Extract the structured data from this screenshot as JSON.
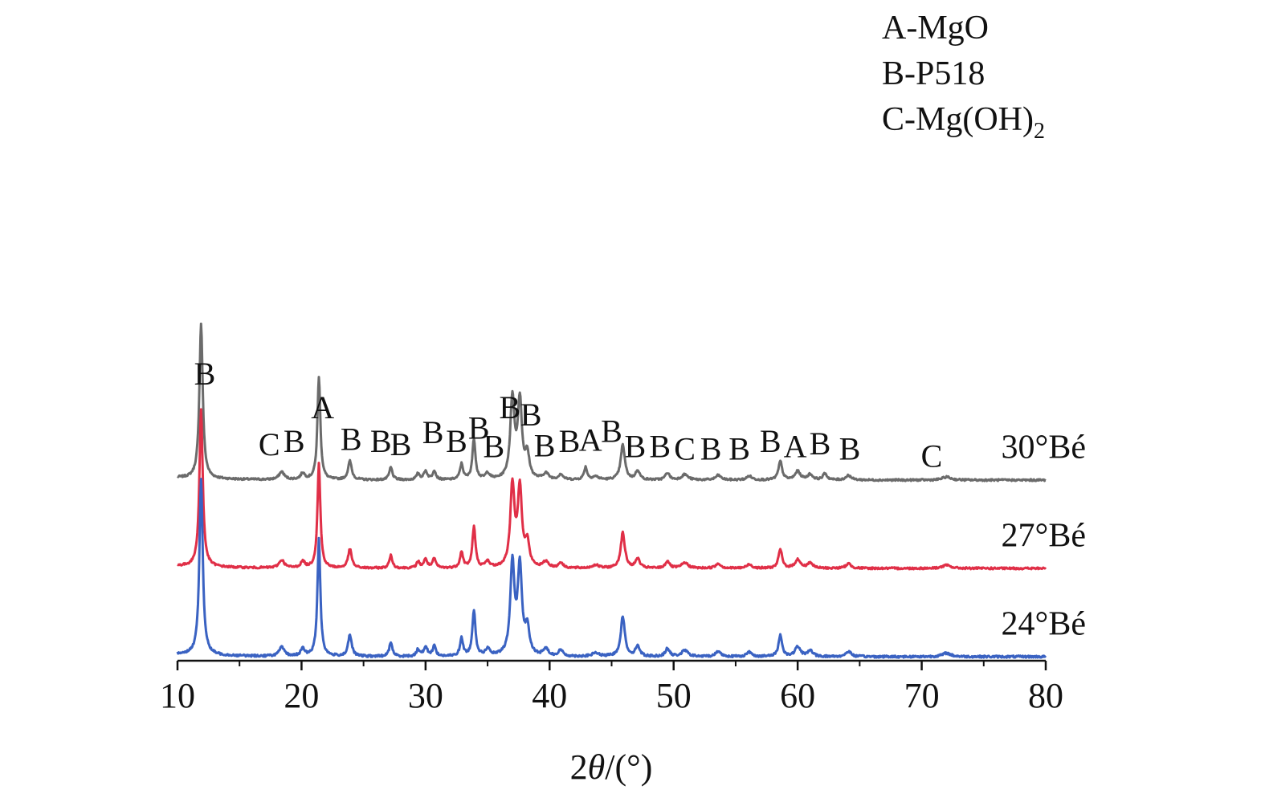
{
  "chart_data": {
    "type": "line",
    "title": "",
    "xlabel": {
      "prefix": "2",
      "symbol": "θ",
      "suffix": "/(°)"
    },
    "ylabel": "",
    "xlim": [
      10,
      80
    ],
    "xticks": [
      "10",
      "20",
      "30",
      "40",
      "50",
      "60",
      "70",
      "80"
    ],
    "grid": false,
    "legend": {
      "placement": "top-right",
      "entries": [
        {
          "text": "A-MgO"
        },
        {
          "text": "B-P518"
        },
        {
          "text": "C-Mg(OH)",
          "sub": "2"
        }
      ]
    },
    "baseline_noise": 1.2,
    "peaks": [
      {
        "x": 11.9,
        "h": 200,
        "w": 0.32
      },
      {
        "x": 18.4,
        "h": 10,
        "w": 0.5
      },
      {
        "x": 20.1,
        "h": 8,
        "w": 0.4
      },
      {
        "x": 21.4,
        "h": 133,
        "w": 0.28
      },
      {
        "x": 23.9,
        "h": 24,
        "w": 0.35
      },
      {
        "x": 27.2,
        "h": 16,
        "w": 0.3
      },
      {
        "x": 29.4,
        "h": 8,
        "w": 0.3
      },
      {
        "x": 30.0,
        "h": 11,
        "w": 0.35
      },
      {
        "x": 30.7,
        "h": 12,
        "w": 0.3
      },
      {
        "x": 32.9,
        "h": 20,
        "w": 0.3
      },
      {
        "x": 33.9,
        "h": 52,
        "w": 0.3
      },
      {
        "x": 35.0,
        "h": 8,
        "w": 0.4
      },
      {
        "x": 37.0,
        "h": 104,
        "w": 0.4
      },
      {
        "x": 37.6,
        "h": 100,
        "w": 0.4
      },
      {
        "x": 38.2,
        "h": 30,
        "w": 0.4
      },
      {
        "x": 39.7,
        "h": 8,
        "w": 0.5
      },
      {
        "x": 40.9,
        "h": 7,
        "w": 0.4
      },
      {
        "x": 43.7,
        "h": 4,
        "w": 0.6
      },
      {
        "x": 45.9,
        "h": 45,
        "w": 0.4
      },
      {
        "x": 47.1,
        "h": 12,
        "w": 0.4
      },
      {
        "x": 49.5,
        "h": 9,
        "w": 0.4
      },
      {
        "x": 50.9,
        "h": 7,
        "w": 0.6
      },
      {
        "x": 53.6,
        "h": 6,
        "w": 0.5
      },
      {
        "x": 56.1,
        "h": 5,
        "w": 0.5
      },
      {
        "x": 58.6,
        "h": 24,
        "w": 0.35
      },
      {
        "x": 60.0,
        "h": 11,
        "w": 0.5
      },
      {
        "x": 61.0,
        "h": 7,
        "w": 0.5
      },
      {
        "x": 64.1,
        "h": 6,
        "w": 0.5
      },
      {
        "x": 72.0,
        "h": 4,
        "w": 0.8
      }
    ],
    "series": [
      {
        "name": "30°Bé",
        "color": "#6b6b6b",
        "offset": 200,
        "scale": 0.88,
        "extra_peaks": [
          {
            "x": 42.9,
            "h": 16,
            "w": 0.3
          },
          {
            "x": 62.2,
            "h": 8,
            "w": 0.4
          }
        ]
      },
      {
        "name": "27°Bé",
        "color": "#e02f47",
        "offset": 100,
        "scale": 0.89,
        "extra_peaks": []
      },
      {
        "name": "24°Bé",
        "color": "#3a62c2",
        "offset": 0,
        "scale": 1.0,
        "extra_peaks": []
      }
    ],
    "peak_annotations": [
      {
        "text": "B",
        "x": 12.2,
        "y": 308
      },
      {
        "text": "C",
        "x": 17.4,
        "y": 228
      },
      {
        "text": "B",
        "x": 19.4,
        "y": 232
      },
      {
        "text": "A",
        "x": 21.7,
        "y": 270
      },
      {
        "text": "B",
        "x": 24.0,
        "y": 234
      },
      {
        "text": "B",
        "x": 26.4,
        "y": 232
      },
      {
        "text": "B",
        "x": 28.0,
        "y": 228
      },
      {
        "text": "B",
        "x": 30.6,
        "y": 242
      },
      {
        "text": "B",
        "x": 32.5,
        "y": 232
      },
      {
        "text": "B",
        "x": 34.3,
        "y": 247
      },
      {
        "text": "B",
        "x": 35.5,
        "y": 226
      },
      {
        "text": "B",
        "x": 36.8,
        "y": 270
      },
      {
        "text": "B",
        "x": 38.5,
        "y": 262
      },
      {
        "text": "B",
        "x": 39.6,
        "y": 227
      },
      {
        "text": "B",
        "x": 41.6,
        "y": 232
      },
      {
        "text": "A",
        "x": 43.3,
        "y": 233
      },
      {
        "text": "B",
        "x": 45.0,
        "y": 243
      },
      {
        "text": "B",
        "x": 46.9,
        "y": 226
      },
      {
        "text": "B",
        "x": 48.9,
        "y": 226
      },
      {
        "text": "C",
        "x": 50.9,
        "y": 223
      },
      {
        "text": "B",
        "x": 53.0,
        "y": 223
      },
      {
        "text": "B",
        "x": 55.3,
        "y": 223
      },
      {
        "text": "B",
        "x": 57.8,
        "y": 232
      },
      {
        "text": "A",
        "x": 59.8,
        "y": 226
      },
      {
        "text": "B",
        "x": 61.8,
        "y": 229
      },
      {
        "text": "B",
        "x": 64.2,
        "y": 223
      },
      {
        "text": "C",
        "x": 70.8,
        "y": 215
      }
    ]
  }
}
